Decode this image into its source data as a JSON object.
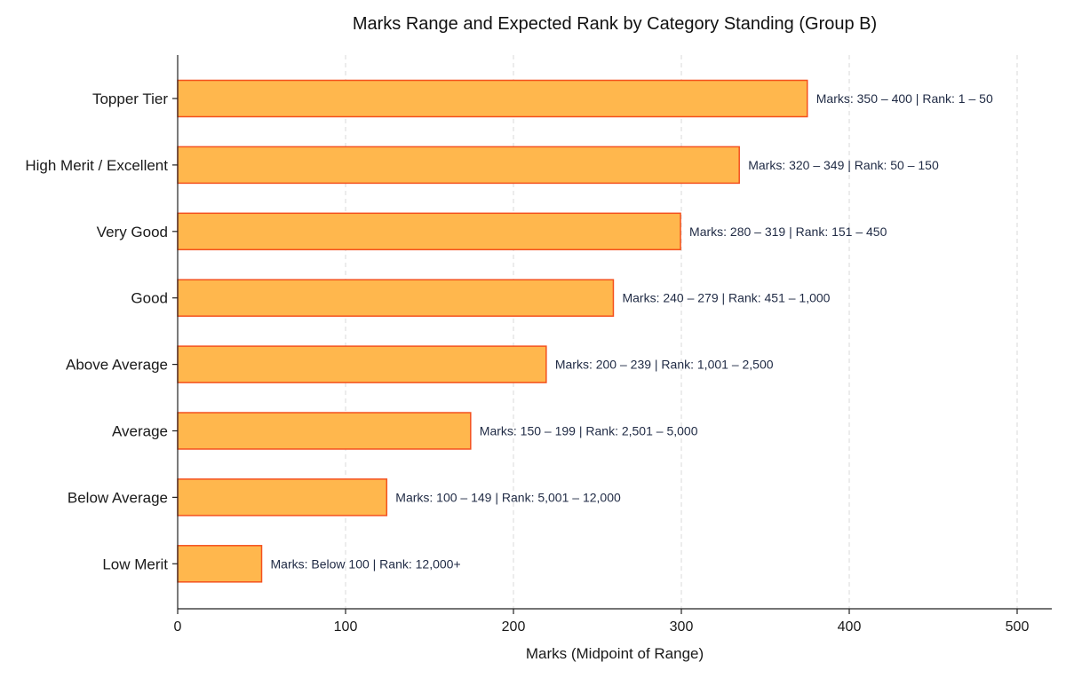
{
  "chart_data": {
    "type": "bar",
    "orientation": "horizontal",
    "title": "Marks Range and Expected Rank by Category Standing (Group B)",
    "xlabel": "Marks (Midpoint of Range)",
    "ylabel": "",
    "xlim": [
      0,
      520
    ],
    "xticks": [
      0,
      100,
      200,
      300,
      400,
      500
    ],
    "grid": true,
    "categories": [
      "Topper Tier",
      "High Merit / Excellent",
      "Very Good",
      "Good",
      "Above Average",
      "Average",
      "Below Average",
      "Low Merit"
    ],
    "values": [
      375,
      334.5,
      299.5,
      259.5,
      219.5,
      174.5,
      124.5,
      50
    ],
    "data_labels": [
      "Marks: 350 – 400 | Rank: 1 – 50",
      "Marks: 320 – 349 | Rank: 50 – 150",
      "Marks: 280 – 319 | Rank: 151 – 450",
      "Marks: 240 – 279 | Rank: 451 – 1,000",
      "Marks: 200 – 239 | Rank: 1,001 – 2,500",
      "Marks: 150 – 199 | Rank: 2,501 – 5,000",
      "Marks: 100 – 149 | Rank: 5,001 – 12,000",
      "Marks: Below 100 | Rank: 12,000+"
    ],
    "bar_color": "#FFB74D",
    "bar_edge_color": "#F4511E"
  }
}
